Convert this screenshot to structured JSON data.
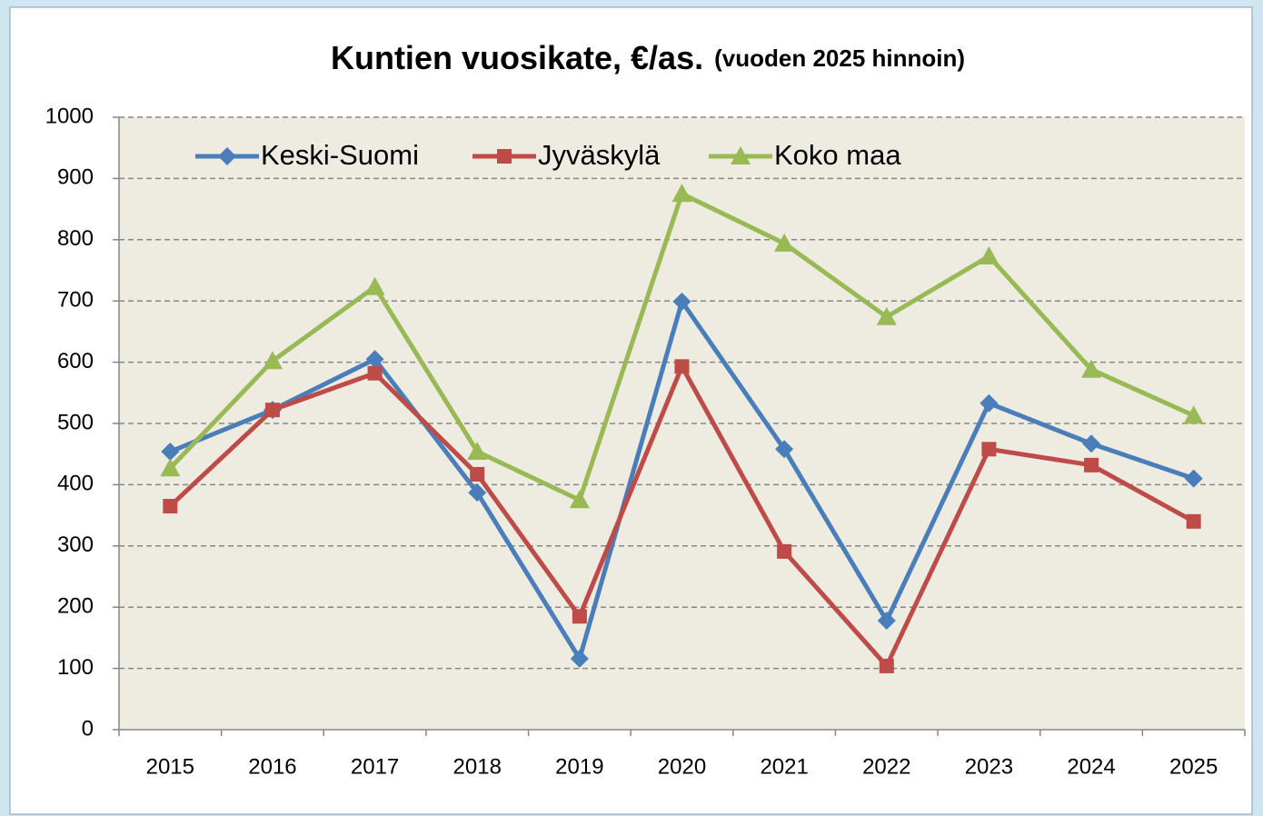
{
  "chart_data": {
    "type": "line",
    "title": "Kuntien vuosikate, €/as.",
    "subtitle": "(vuoden 2025 hinnoin)",
    "categories": [
      "2015",
      "2016",
      "2017",
      "2018",
      "2019",
      "2020",
      "2021",
      "2022",
      "2023",
      "2024",
      "2025"
    ],
    "series": [
      {
        "name": "Keski-Suomi",
        "color": "#4a7ebb",
        "marker": "diamond",
        "values": [
          454,
          522,
          605,
          387,
          116,
          699,
          458,
          178,
          533,
          467,
          410
        ]
      },
      {
        "name": "Jyväskylä",
        "color": "#be4b48",
        "marker": "square",
        "values": [
          365,
          522,
          582,
          417,
          185,
          593,
          291,
          104,
          458,
          432,
          340
        ]
      },
      {
        "name": "Koko maa",
        "color": "#98b954",
        "marker": "triangle",
        "values": [
          427,
          602,
          723,
          454,
          375,
          875,
          794,
          674,
          773,
          588,
          513
        ]
      }
    ],
    "ylim": [
      0,
      1000
    ],
    "yticks": [
      0,
      100,
      200,
      300,
      400,
      500,
      600,
      700,
      800,
      900,
      1000
    ],
    "grid": true,
    "legend": "top"
  }
}
